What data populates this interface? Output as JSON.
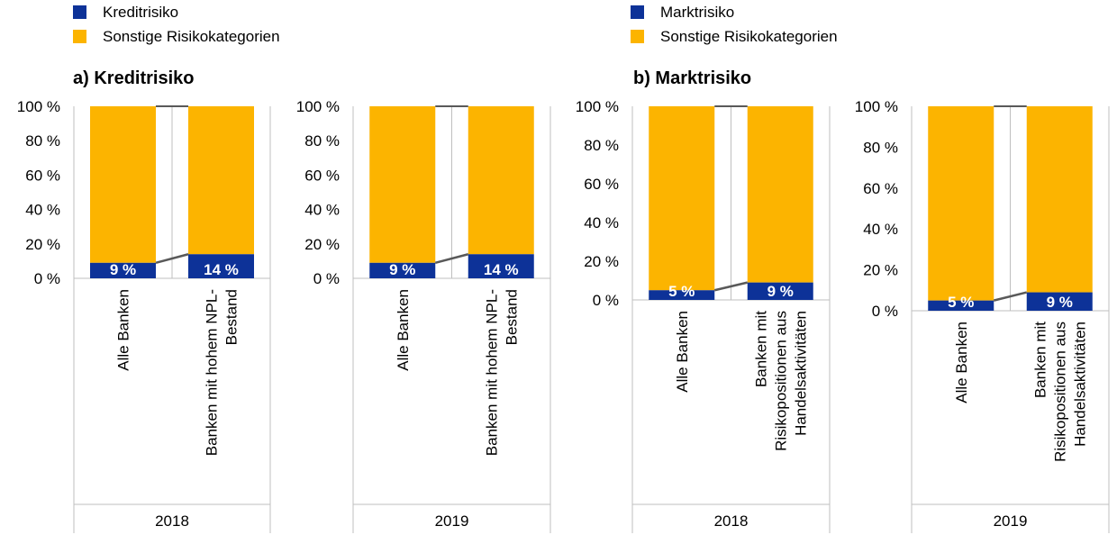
{
  "colors": {
    "main": "#0d3298",
    "other": "#fcb400",
    "grid": "#bfbfbf",
    "connector": "#595959"
  },
  "legends": [
    {
      "items": [
        {
          "label": "Kreditrisiko",
          "color": "#0d3298"
        },
        {
          "label": "Sonstige Risikokategorien",
          "color": "#fcb400"
        }
      ]
    },
    {
      "items": [
        {
          "label": "Marktrisiko",
          "color": "#0d3298"
        },
        {
          "label": "Sonstige Risikokategorien",
          "color": "#fcb400"
        }
      ]
    }
  ],
  "panels": [
    {
      "title": "a) Kreditrisiko"
    },
    {
      "title": "b) Marktrisiko"
    }
  ],
  "chart_data": [
    {
      "type": "bar",
      "stacked": true,
      "panel": "a) Kreditrisiko",
      "year": "2018",
      "categories": [
        "Alle Banken",
        "Banken mit hohem NPL-Bestand"
      ],
      "series": [
        {
          "name": "Kreditrisiko",
          "values": [
            9,
            14
          ],
          "labels": [
            "9 %",
            "14 %"
          ]
        },
        {
          "name": "Sonstige Risikokategorien",
          "values": [
            91,
            86
          ]
        }
      ],
      "yticks": [
        "0 %",
        "20 %",
        "40 %",
        "60 %",
        "80 %",
        "100 %"
      ],
      "ylim": [
        0,
        100
      ]
    },
    {
      "type": "bar",
      "stacked": true,
      "panel": "a) Kreditrisiko",
      "year": "2019",
      "categories": [
        "Alle Banken",
        "Banken mit hohem NPL-Bestand"
      ],
      "series": [
        {
          "name": "Kreditrisiko",
          "values": [
            9,
            14
          ],
          "labels": [
            "9 %",
            "14 %"
          ]
        },
        {
          "name": "Sonstige Risikokategorien",
          "values": [
            91,
            86
          ]
        }
      ],
      "yticks": [
        "0 %",
        "20 %",
        "40 %",
        "60 %",
        "80 %",
        "100 %"
      ],
      "ylim": [
        0,
        100
      ]
    },
    {
      "type": "bar",
      "stacked": true,
      "panel": "b) Marktrisiko",
      "year": "2018",
      "categories": [
        "Alle Banken",
        "Banken mit Risikopositionen aus Handelsaktivitäten"
      ],
      "series": [
        {
          "name": "Marktrisiko",
          "values": [
            5,
            9
          ],
          "labels": [
            "5 %",
            "9 %"
          ]
        },
        {
          "name": "Sonstige Risikokategorien",
          "values": [
            95,
            91
          ]
        }
      ],
      "yticks": [
        "0 %",
        "20 %",
        "40 %",
        "60 %",
        "80 %",
        "100 %"
      ],
      "ylim": [
        0,
        100
      ]
    },
    {
      "type": "bar",
      "stacked": true,
      "panel": "b) Marktrisiko",
      "year": "2019",
      "categories": [
        "Alle Banken",
        "Banken mit Risikopositionen aus Handelsaktivitäten"
      ],
      "series": [
        {
          "name": "Marktrisiko",
          "values": [
            5,
            9
          ],
          "labels": [
            "5 %",
            "9 %"
          ]
        },
        {
          "name": "Sonstige Risikokategorien",
          "values": [
            95,
            91
          ]
        }
      ],
      "yticks": [
        "0 %",
        "20 %",
        "40 %",
        "60 %",
        "80 %",
        "100 %"
      ],
      "ylim": [
        0,
        100
      ]
    }
  ]
}
